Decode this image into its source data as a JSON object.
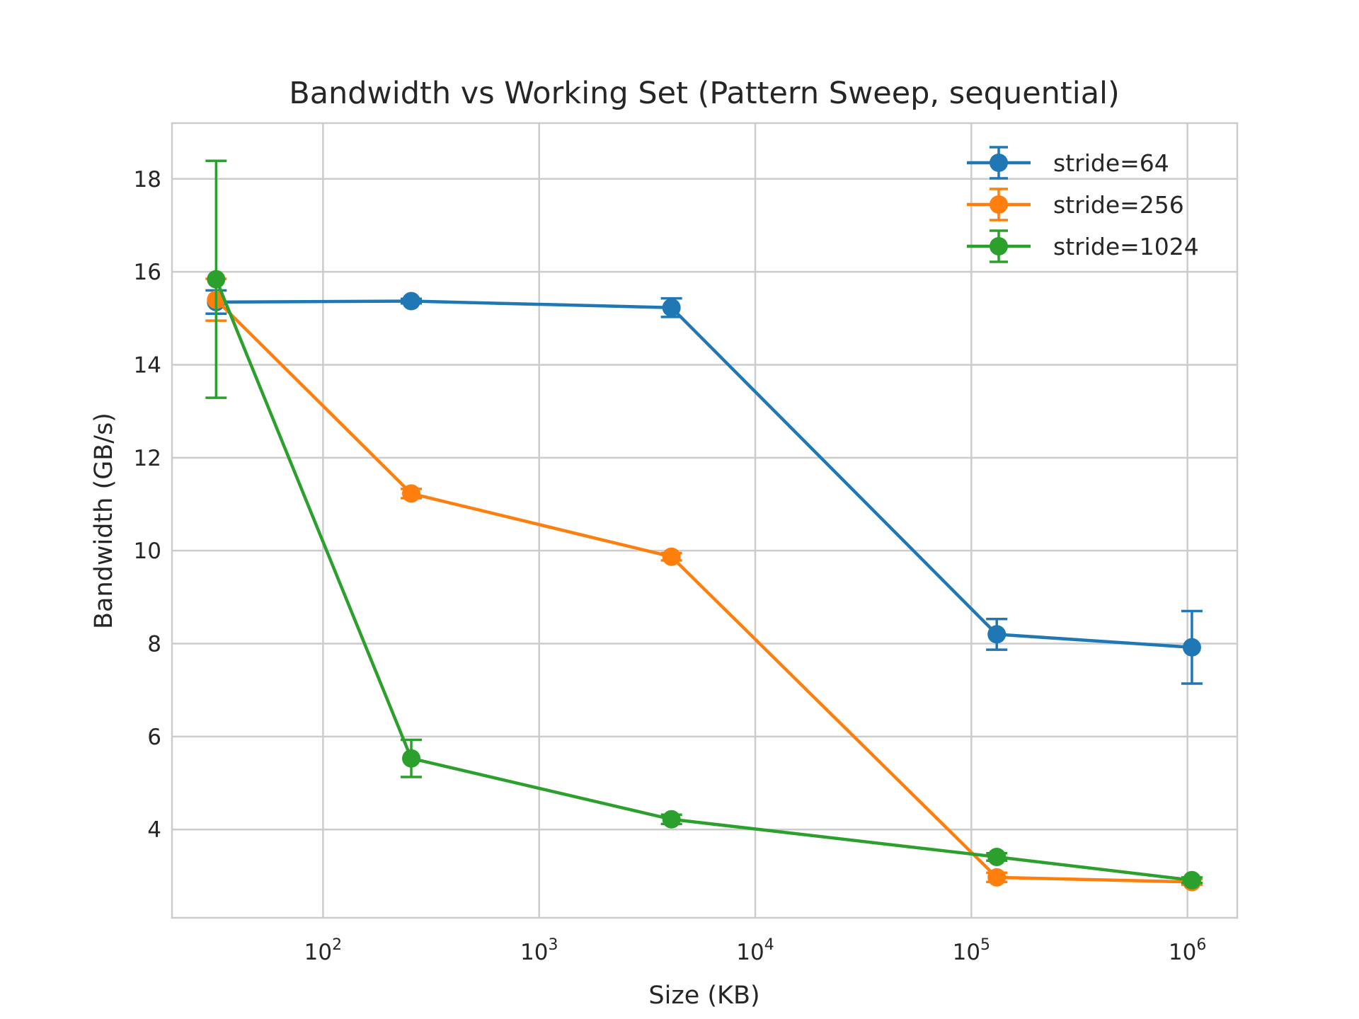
{
  "chart_data": {
    "type": "line",
    "title": "Bandwidth vs Working Set (Pattern Sweep, sequential)",
    "xlabel": "Size (KB)",
    "ylabel": "Bandwidth (GB/s)",
    "xscale": "log",
    "xlim": [
      20,
      1700000
    ],
    "ylim": [
      2.1,
      19.2
    ],
    "xticks": [
      {
        "value": 100,
        "base": "10",
        "exp": "2"
      },
      {
        "value": 1000,
        "base": "10",
        "exp": "3"
      },
      {
        "value": 10000,
        "base": "10",
        "exp": "4"
      },
      {
        "value": 100000,
        "base": "10",
        "exp": "5"
      },
      {
        "value": 1000000,
        "base": "10",
        "exp": "6"
      }
    ],
    "yticks": [
      {
        "value": 4,
        "label": "4"
      },
      {
        "value": 6,
        "label": "6"
      },
      {
        "value": 8,
        "label": "8"
      },
      {
        "value": 10,
        "label": "10"
      },
      {
        "value": 12,
        "label": "12"
      },
      {
        "value": 14,
        "label": "14"
      },
      {
        "value": 16,
        "label": "16"
      },
      {
        "value": 18,
        "label": "18"
      }
    ],
    "grid": true,
    "legend_position": "top-right",
    "x": [
      32,
      256,
      4096,
      131072,
      1048576
    ],
    "series": [
      {
        "name": "stride=64",
        "color": "#1f77b4",
        "values": [
          15.35,
          15.37,
          15.23,
          8.2,
          7.92
        ],
        "errors": [
          0.25,
          0.05,
          0.2,
          0.33,
          0.78
        ]
      },
      {
        "name": "stride=256",
        "color": "#ff7f0e",
        "values": [
          15.4,
          11.23,
          9.87,
          2.97,
          2.87
        ],
        "errors": [
          0.45,
          0.1,
          0.08,
          0.1,
          0.06
        ]
      },
      {
        "name": "stride=1024",
        "color": "#2ca02c",
        "values": [
          15.84,
          5.53,
          4.22,
          3.41,
          2.91
        ],
        "errors": [
          2.55,
          0.4,
          0.1,
          0.08,
          0.06
        ]
      }
    ]
  }
}
